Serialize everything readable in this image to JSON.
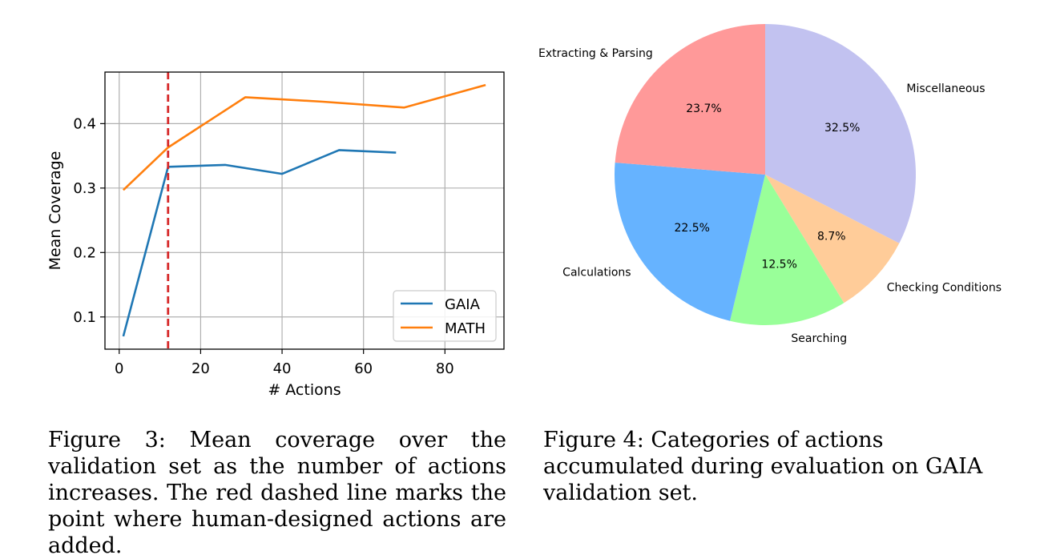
{
  "chart_data": [
    {
      "type": "line",
      "xlabel": "# Actions",
      "ylabel": "Mean Coverage",
      "xlim": [
        -3.5,
        94.5
      ],
      "ylim": [
        0.05,
        0.48
      ],
      "xticks": [
        0,
        20,
        40,
        60,
        80
      ],
      "yticks": [
        0.1,
        0.2,
        0.3,
        0.4
      ],
      "xtick_labels": [
        "0",
        "20",
        "40",
        "60",
        "80"
      ],
      "ytick_labels": [
        "0.1",
        "0.2",
        "0.3",
        "0.4"
      ],
      "grid": true,
      "legend_position": "lower-right",
      "vline": {
        "x": 12,
        "color": "#d62728",
        "style": "dashed"
      },
      "series": [
        {
          "name": "GAIA",
          "color": "#1f77b4",
          "x": [
            1,
            12,
            26,
            40,
            54,
            68
          ],
          "y": [
            0.07,
            0.333,
            0.336,
            0.322,
            0.359,
            0.355
          ]
        },
        {
          "name": "MATH",
          "color": "#ff7f0e",
          "x": [
            1,
            12,
            31,
            50,
            70,
            90
          ],
          "y": [
            0.297,
            0.363,
            0.441,
            0.434,
            0.425,
            0.46
          ]
        }
      ]
    },
    {
      "type": "pie",
      "slices": [
        {
          "label": "Miscellaneous",
          "value": 32.5,
          "pct_label": "32.5%",
          "color": "#c2c2f0"
        },
        {
          "label": "Checking Conditions",
          "value": 8.7,
          "pct_label": "8.7%",
          "color": "#ffcc99"
        },
        {
          "label": "Searching",
          "value": 12.5,
          "pct_label": "12.5%",
          "color": "#99ff99"
        },
        {
          "label": "Calculations",
          "value": 22.5,
          "pct_label": "22.5%",
          "color": "#66b3ff"
        },
        {
          "label": "Extracting & Parsing",
          "value": 23.7,
          "pct_label": "23.7%",
          "color": "#ff9999"
        }
      ]
    }
  ],
  "captions": {
    "figure3": "Figure 3: Mean coverage over the validation set as the number of actions increases. The red dashed line marks the point where human-designed actions are added.",
    "figure4": "Figure 4: Categories of actions accumulated during evaluation on GAIA validation set."
  }
}
